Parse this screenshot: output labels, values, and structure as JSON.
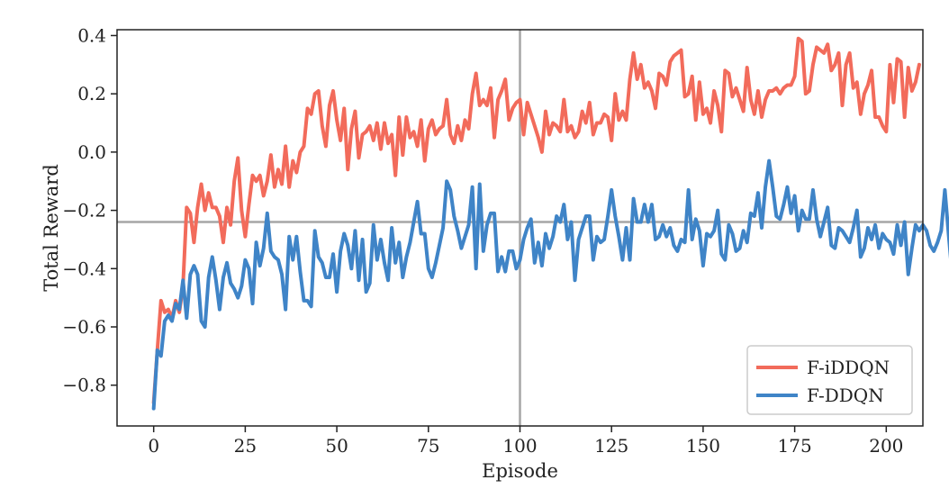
{
  "chart_data": {
    "type": "line",
    "title": "",
    "xlabel": "Episode",
    "ylabel": "Total Reward",
    "xlim": [
      -10,
      210
    ],
    "ylim": [
      -0.94,
      0.42
    ],
    "xticks": [
      0,
      25,
      50,
      75,
      100,
      125,
      150,
      175,
      200
    ],
    "xtick_labels": [
      "0",
      "25",
      "50",
      "75",
      "100",
      "125",
      "150",
      "175",
      "200"
    ],
    "yticks": [
      -0.8,
      -0.6,
      -0.4,
      -0.2,
      0.0,
      0.2,
      0.4
    ],
    "ytick_labels": [
      "−0.8",
      "−0.6",
      "−0.4",
      "−0.2",
      "0.0",
      "0.2",
      "0.4"
    ],
    "grid": false,
    "legend": "bottom-right",
    "reference_lines": [
      {
        "orientation": "vertical",
        "x": 100,
        "color": "#a6a6a6"
      },
      {
        "orientation": "horizontal",
        "y": -0.24,
        "color": "#a6a6a6"
      }
    ],
    "series": [
      {
        "name": "F-iDDQN",
        "color": "#f26b5b",
        "values": [
          -0.86,
          -0.68,
          -0.51,
          -0.55,
          -0.54,
          -0.57,
          -0.51,
          -0.55,
          -0.46,
          -0.19,
          -0.21,
          -0.31,
          -0.19,
          -0.11,
          -0.2,
          -0.14,
          -0.19,
          -0.19,
          -0.22,
          -0.31,
          -0.19,
          -0.25,
          -0.1,
          -0.02,
          -0.2,
          -0.29,
          -0.18,
          -0.08,
          -0.1,
          -0.08,
          -0.15,
          -0.1,
          -0.01,
          -0.12,
          -0.06,
          -0.11,
          0.02,
          -0.12,
          -0.03,
          -0.07,
          0.0,
          0.02,
          0.15,
          0.13,
          0.2,
          0.21,
          0.09,
          0.02,
          0.16,
          0.21,
          0.11,
          0.04,
          0.15,
          -0.06,
          0.08,
          0.14,
          -0.02,
          0.06,
          0.07,
          0.09,
          0.04,
          0.1,
          0.01,
          0.1,
          0.03,
          0.06,
          -0.08,
          0.12,
          -0.01,
          0.12,
          0.05,
          0.07,
          0.02,
          0.11,
          -0.03,
          0.08,
          0.11,
          0.06,
          0.08,
          0.09,
          0.18,
          0.06,
          0.03,
          0.09,
          0.04,
          0.11,
          0.08,
          0.2,
          0.27,
          0.16,
          0.18,
          0.16,
          0.22,
          0.05,
          0.18,
          0.21,
          0.25,
          0.11,
          0.15,
          0.17,
          0.18,
          0.06,
          0.17,
          0.13,
          0.09,
          0.05,
          0.0,
          0.14,
          0.06,
          0.1,
          0.09,
          0.07,
          0.18,
          0.07,
          0.09,
          0.05,
          0.07,
          0.14,
          0.1,
          0.17,
          0.06,
          0.1,
          0.1,
          0.13,
          0.12,
          0.04,
          0.2,
          0.11,
          0.14,
          0.11,
          0.25,
          0.34,
          0.25,
          0.3,
          0.22,
          0.24,
          0.21,
          0.15,
          0.27,
          0.26,
          0.23,
          0.31,
          0.33,
          0.34,
          0.35,
          0.19,
          0.2,
          0.26,
          0.11,
          0.24,
          0.13,
          0.15,
          0.1,
          0.21,
          0.16,
          0.07,
          0.28,
          0.27,
          0.19,
          0.22,
          0.18,
          0.14,
          0.29,
          0.18,
          0.13,
          0.21,
          0.12,
          0.18,
          0.21,
          0.21,
          0.22,
          0.2,
          0.22,
          0.23,
          0.23,
          0.26,
          0.39,
          0.38,
          0.2,
          0.21,
          0.3,
          0.36,
          0.35,
          0.34,
          0.37,
          0.28,
          0.3,
          0.34,
          0.16,
          0.3,
          0.34,
          0.22,
          0.24,
          0.13,
          0.2,
          0.23,
          0.28,
          0.12,
          0.12,
          0.09,
          0.07,
          0.3,
          0.17,
          0.32,
          0.31,
          0.12,
          0.29,
          0.21,
          0.24,
          0.3
        ]
      },
      {
        "name": "F-DDQN",
        "color": "#3f84c7",
        "values": [
          -0.88,
          -0.68,
          -0.7,
          -0.58,
          -0.56,
          -0.58,
          -0.52,
          -0.54,
          -0.44,
          -0.57,
          -0.42,
          -0.39,
          -0.42,
          -0.58,
          -0.6,
          -0.43,
          -0.36,
          -0.44,
          -0.54,
          -0.43,
          -0.38,
          -0.45,
          -0.47,
          -0.5,
          -0.46,
          -0.37,
          -0.4,
          -0.52,
          -0.31,
          -0.39,
          -0.33,
          -0.21,
          -0.34,
          -0.36,
          -0.37,
          -0.42,
          -0.54,
          -0.29,
          -0.37,
          -0.29,
          -0.41,
          -0.51,
          -0.51,
          -0.53,
          -0.27,
          -0.36,
          -0.38,
          -0.43,
          -0.43,
          -0.35,
          -0.48,
          -0.34,
          -0.28,
          -0.32,
          -0.4,
          -0.27,
          -0.44,
          -0.3,
          -0.48,
          -0.45,
          -0.25,
          -0.37,
          -0.3,
          -0.38,
          -0.44,
          -0.26,
          -0.38,
          -0.31,
          -0.43,
          -0.36,
          -0.31,
          -0.24,
          -0.17,
          -0.28,
          -0.28,
          -0.4,
          -0.43,
          -0.38,
          -0.32,
          -0.26,
          -0.1,
          -0.13,
          -0.22,
          -0.27,
          -0.33,
          -0.29,
          -0.25,
          -0.12,
          -0.4,
          -0.11,
          -0.34,
          -0.25,
          -0.21,
          -0.21,
          -0.41,
          -0.36,
          -0.41,
          -0.34,
          -0.34,
          -0.4,
          -0.37,
          -0.3,
          -0.26,
          -0.23,
          -0.38,
          -0.31,
          -0.39,
          -0.28,
          -0.33,
          -0.29,
          -0.22,
          -0.24,
          -0.18,
          -0.3,
          -0.24,
          -0.44,
          -0.3,
          -0.26,
          -0.22,
          -0.22,
          -0.37,
          -0.29,
          -0.31,
          -0.3,
          -0.22,
          -0.13,
          -0.22,
          -0.29,
          -0.37,
          -0.26,
          -0.37,
          -0.16,
          -0.24,
          -0.24,
          -0.18,
          -0.24,
          -0.18,
          -0.3,
          -0.29,
          -0.25,
          -0.29,
          -0.26,
          -0.32,
          -0.34,
          -0.3,
          -0.31,
          -0.13,
          -0.3,
          -0.23,
          -0.27,
          -0.39,
          -0.28,
          -0.29,
          -0.27,
          -0.2,
          -0.35,
          -0.37,
          -0.25,
          -0.28,
          -0.34,
          -0.33,
          -0.27,
          -0.31,
          -0.21,
          -0.22,
          -0.14,
          -0.26,
          -0.12,
          -0.03,
          -0.12,
          -0.22,
          -0.23,
          -0.18,
          -0.12,
          -0.21,
          -0.15,
          -0.27,
          -0.2,
          -0.23,
          -0.23,
          -0.13,
          -0.23,
          -0.29,
          -0.24,
          -0.19,
          -0.32,
          -0.33,
          -0.26,
          -0.27,
          -0.29,
          -0.31,
          -0.26,
          -0.2,
          -0.36,
          -0.33,
          -0.26,
          -0.3,
          -0.25,
          -0.33,
          -0.28,
          -0.3,
          -0.31,
          -0.35,
          -0.25,
          -0.32,
          -0.24,
          -0.42,
          -0.33,
          -0.25,
          -0.27,
          -0.25,
          -0.27,
          -0.32,
          -0.34,
          -0.31,
          -0.27,
          -0.13,
          -0.28,
          -0.42,
          -0.3,
          -0.27,
          -0.26,
          -0.11,
          -0.28,
          -0.31,
          -0.28,
          -0.3,
          -0.25,
          -0.13,
          -0.29,
          -0.32,
          -0.21,
          -0.26,
          -0.38,
          -0.3,
          -0.41,
          -0.31,
          -0.38
        ]
      }
    ]
  }
}
